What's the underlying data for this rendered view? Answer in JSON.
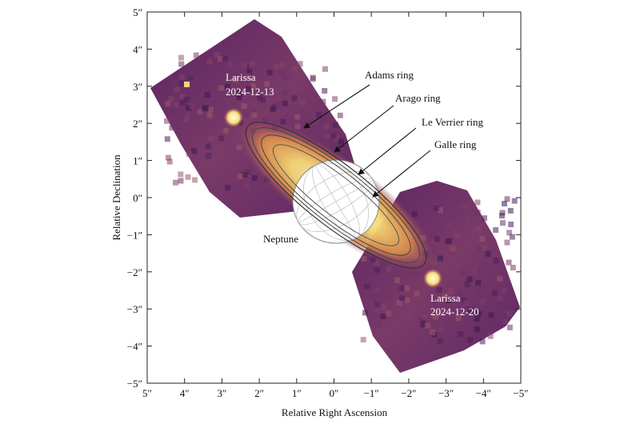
{
  "chart_data": {
    "type": "heatmap",
    "title": "",
    "xlabel": "Relative Right Ascension",
    "ylabel": "Relative Declination",
    "xlim": [
      5,
      -5
    ],
    "ylim": [
      -5,
      5
    ],
    "x_ticks": [
      "5″",
      "4″",
      "3″",
      "2″",
      "1″",
      "0″",
      "−1″",
      "−2″",
      "−3″",
      "−4″",
      "−5″"
    ],
    "y_ticks": [
      "5″",
      "4″",
      "3″",
      "2″",
      "1″",
      "0″",
      "−1″",
      "−2″",
      "−3″",
      "−4″",
      "−5″"
    ],
    "planet_label": "Neptune",
    "rings": [
      {
        "name": "Adams ring"
      },
      {
        "name": "Arago ring"
      },
      {
        "name": "Le Verrier ring"
      },
      {
        "name": "Galle ring"
      }
    ],
    "moon_labels": [
      {
        "name": "Larissa",
        "date": "2024-12-13"
      },
      {
        "name": "Larissa",
        "date": "2024-12-20"
      }
    ]
  },
  "colors": {
    "background": "#5e2864",
    "glow": "#f6e28a",
    "core": "#fff8d0"
  }
}
